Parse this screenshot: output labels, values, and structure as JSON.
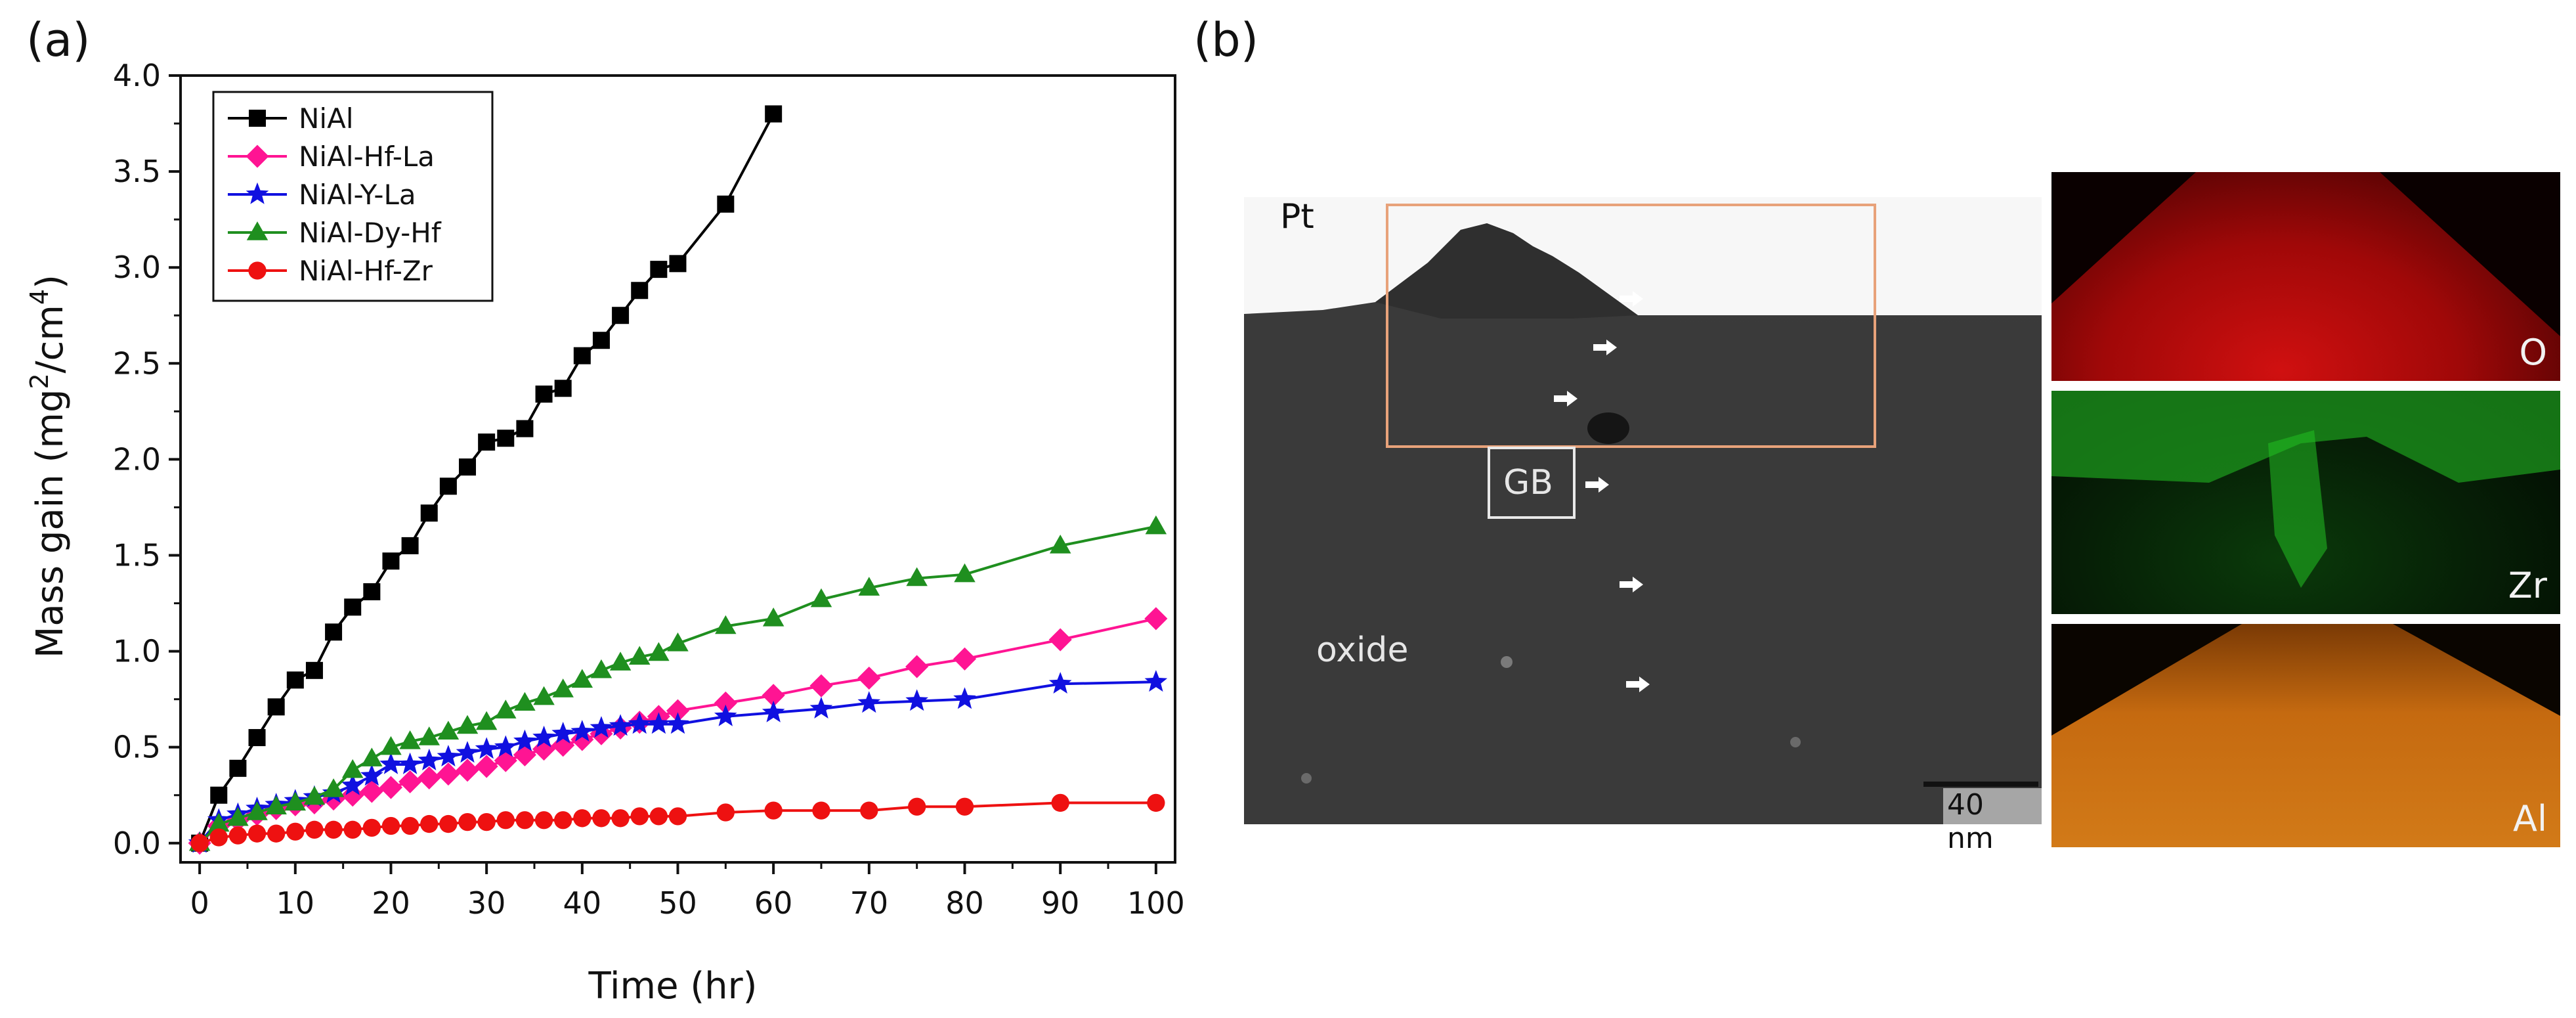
{
  "panel_labels": {
    "a": "(a)",
    "b": "(b)"
  },
  "chart_data": {
    "type": "line",
    "xlabel": "Time (hr)",
    "ylabel_main": "Mass gain (mg",
    "ylabel_sup1": "2",
    "ylabel_mid": "/cm",
    "ylabel_sup2": "4",
    "ylabel_end": ")",
    "xlim": [
      -2,
      102
    ],
    "ylim": [
      -0.1,
      4.0
    ],
    "xticks": [
      0,
      10,
      20,
      30,
      40,
      50,
      60,
      70,
      80,
      90,
      100
    ],
    "xtick_labels": [
      "0",
      "10",
      "20",
      "30",
      "40",
      "50",
      "60",
      "70",
      "80",
      "90",
      "100"
    ],
    "yticks": [
      0.0,
      0.5,
      1.0,
      1.5,
      2.0,
      2.5,
      3.0,
      3.5,
      4.0
    ],
    "ytick_labels": [
      "0.0",
      "0.5",
      "1.0",
      "1.5",
      "2.0",
      "2.5",
      "3.0",
      "3.5",
      "4.0"
    ],
    "legend_position": "top-left",
    "series": [
      {
        "name": "NiAl",
        "color": "#000000",
        "marker": "square",
        "x": [
          0,
          2,
          4,
          6,
          8,
          10,
          12,
          14,
          16,
          18,
          20,
          22,
          24,
          26,
          28,
          30,
          32,
          34,
          36,
          38,
          40,
          42,
          44,
          46,
          48,
          50,
          55,
          60
        ],
        "y": [
          0.0,
          0.25,
          0.39,
          0.55,
          0.71,
          0.85,
          0.9,
          1.1,
          1.23,
          1.31,
          1.47,
          1.55,
          1.72,
          1.86,
          1.96,
          2.09,
          2.11,
          2.16,
          2.34,
          2.37,
          2.54,
          2.62,
          2.75,
          2.88,
          2.99,
          3.02,
          3.33,
          3.8
        ]
      },
      {
        "name": "NiAl-Hf-La",
        "color": "#ff1493",
        "marker": "diamond",
        "x": [
          0,
          2,
          4,
          6,
          8,
          10,
          12,
          14,
          16,
          18,
          20,
          22,
          24,
          26,
          28,
          30,
          32,
          34,
          36,
          38,
          40,
          42,
          44,
          46,
          48,
          50,
          55,
          60,
          65,
          70,
          75,
          80,
          90,
          100
        ],
        "y": [
          0.0,
          0.09,
          0.12,
          0.15,
          0.18,
          0.2,
          0.21,
          0.23,
          0.25,
          0.27,
          0.29,
          0.32,
          0.34,
          0.36,
          0.38,
          0.4,
          0.43,
          0.46,
          0.49,
          0.51,
          0.54,
          0.57,
          0.6,
          0.63,
          0.66,
          0.69,
          0.73,
          0.77,
          0.82,
          0.86,
          0.92,
          0.96,
          1.06,
          1.17
        ]
      },
      {
        "name": "NiAl-Y-La",
        "color": "#1010e0",
        "marker": "star",
        "x": [
          0,
          2,
          4,
          6,
          8,
          10,
          12,
          14,
          16,
          18,
          20,
          22,
          24,
          26,
          28,
          30,
          32,
          34,
          36,
          38,
          40,
          42,
          44,
          46,
          48,
          50,
          55,
          60,
          65,
          70,
          75,
          80,
          90,
          100
        ],
        "y": [
          0.0,
          0.12,
          0.15,
          0.18,
          0.2,
          0.22,
          0.24,
          0.26,
          0.3,
          0.35,
          0.41,
          0.41,
          0.43,
          0.45,
          0.47,
          0.49,
          0.5,
          0.53,
          0.55,
          0.57,
          0.58,
          0.6,
          0.61,
          0.62,
          0.62,
          0.62,
          0.66,
          0.68,
          0.7,
          0.73,
          0.74,
          0.75,
          0.83,
          0.84
        ]
      },
      {
        "name": "NiAl-Dy-Hf",
        "color": "#1f8f1f",
        "marker": "triangle",
        "x": [
          0,
          2,
          4,
          6,
          8,
          10,
          12,
          14,
          16,
          18,
          20,
          22,
          24,
          26,
          28,
          30,
          32,
          34,
          36,
          38,
          40,
          42,
          44,
          46,
          48,
          50,
          55,
          60,
          65,
          70,
          75,
          80,
          90,
          100
        ],
        "y": [
          0.0,
          0.1,
          0.13,
          0.16,
          0.19,
          0.21,
          0.24,
          0.28,
          0.38,
          0.44,
          0.5,
          0.53,
          0.55,
          0.58,
          0.61,
          0.63,
          0.69,
          0.73,
          0.76,
          0.8,
          0.85,
          0.9,
          0.94,
          0.97,
          0.99,
          1.04,
          1.13,
          1.17,
          1.27,
          1.33,
          1.38,
          1.4,
          1.55,
          1.65
        ]
      },
      {
        "name": "NiAl-Hf-Zr",
        "color": "#ee1111",
        "marker": "circle",
        "x": [
          0,
          2,
          4,
          6,
          8,
          10,
          12,
          14,
          16,
          18,
          20,
          22,
          24,
          26,
          28,
          30,
          32,
          34,
          36,
          38,
          40,
          42,
          44,
          46,
          48,
          50,
          55,
          60,
          65,
          70,
          75,
          80,
          90,
          100
        ],
        "y": [
          0.0,
          0.03,
          0.04,
          0.05,
          0.05,
          0.06,
          0.07,
          0.07,
          0.07,
          0.08,
          0.09,
          0.09,
          0.1,
          0.1,
          0.11,
          0.11,
          0.12,
          0.12,
          0.12,
          0.12,
          0.13,
          0.13,
          0.13,
          0.14,
          0.14,
          0.14,
          0.16,
          0.17,
          0.17,
          0.17,
          0.19,
          0.19,
          0.21,
          0.21
        ]
      }
    ]
  },
  "tem": {
    "label_pt": "Pt",
    "label_gb": "GB",
    "label_oxide": "oxide",
    "scalebar_label": "40 nm",
    "box_color": "#e8a27a"
  },
  "maps": [
    {
      "label": "O",
      "color": "#e01010"
    },
    {
      "label": "Zr",
      "color": "#10c010"
    },
    {
      "label": "Al",
      "color": "#e07a10"
    }
  ]
}
